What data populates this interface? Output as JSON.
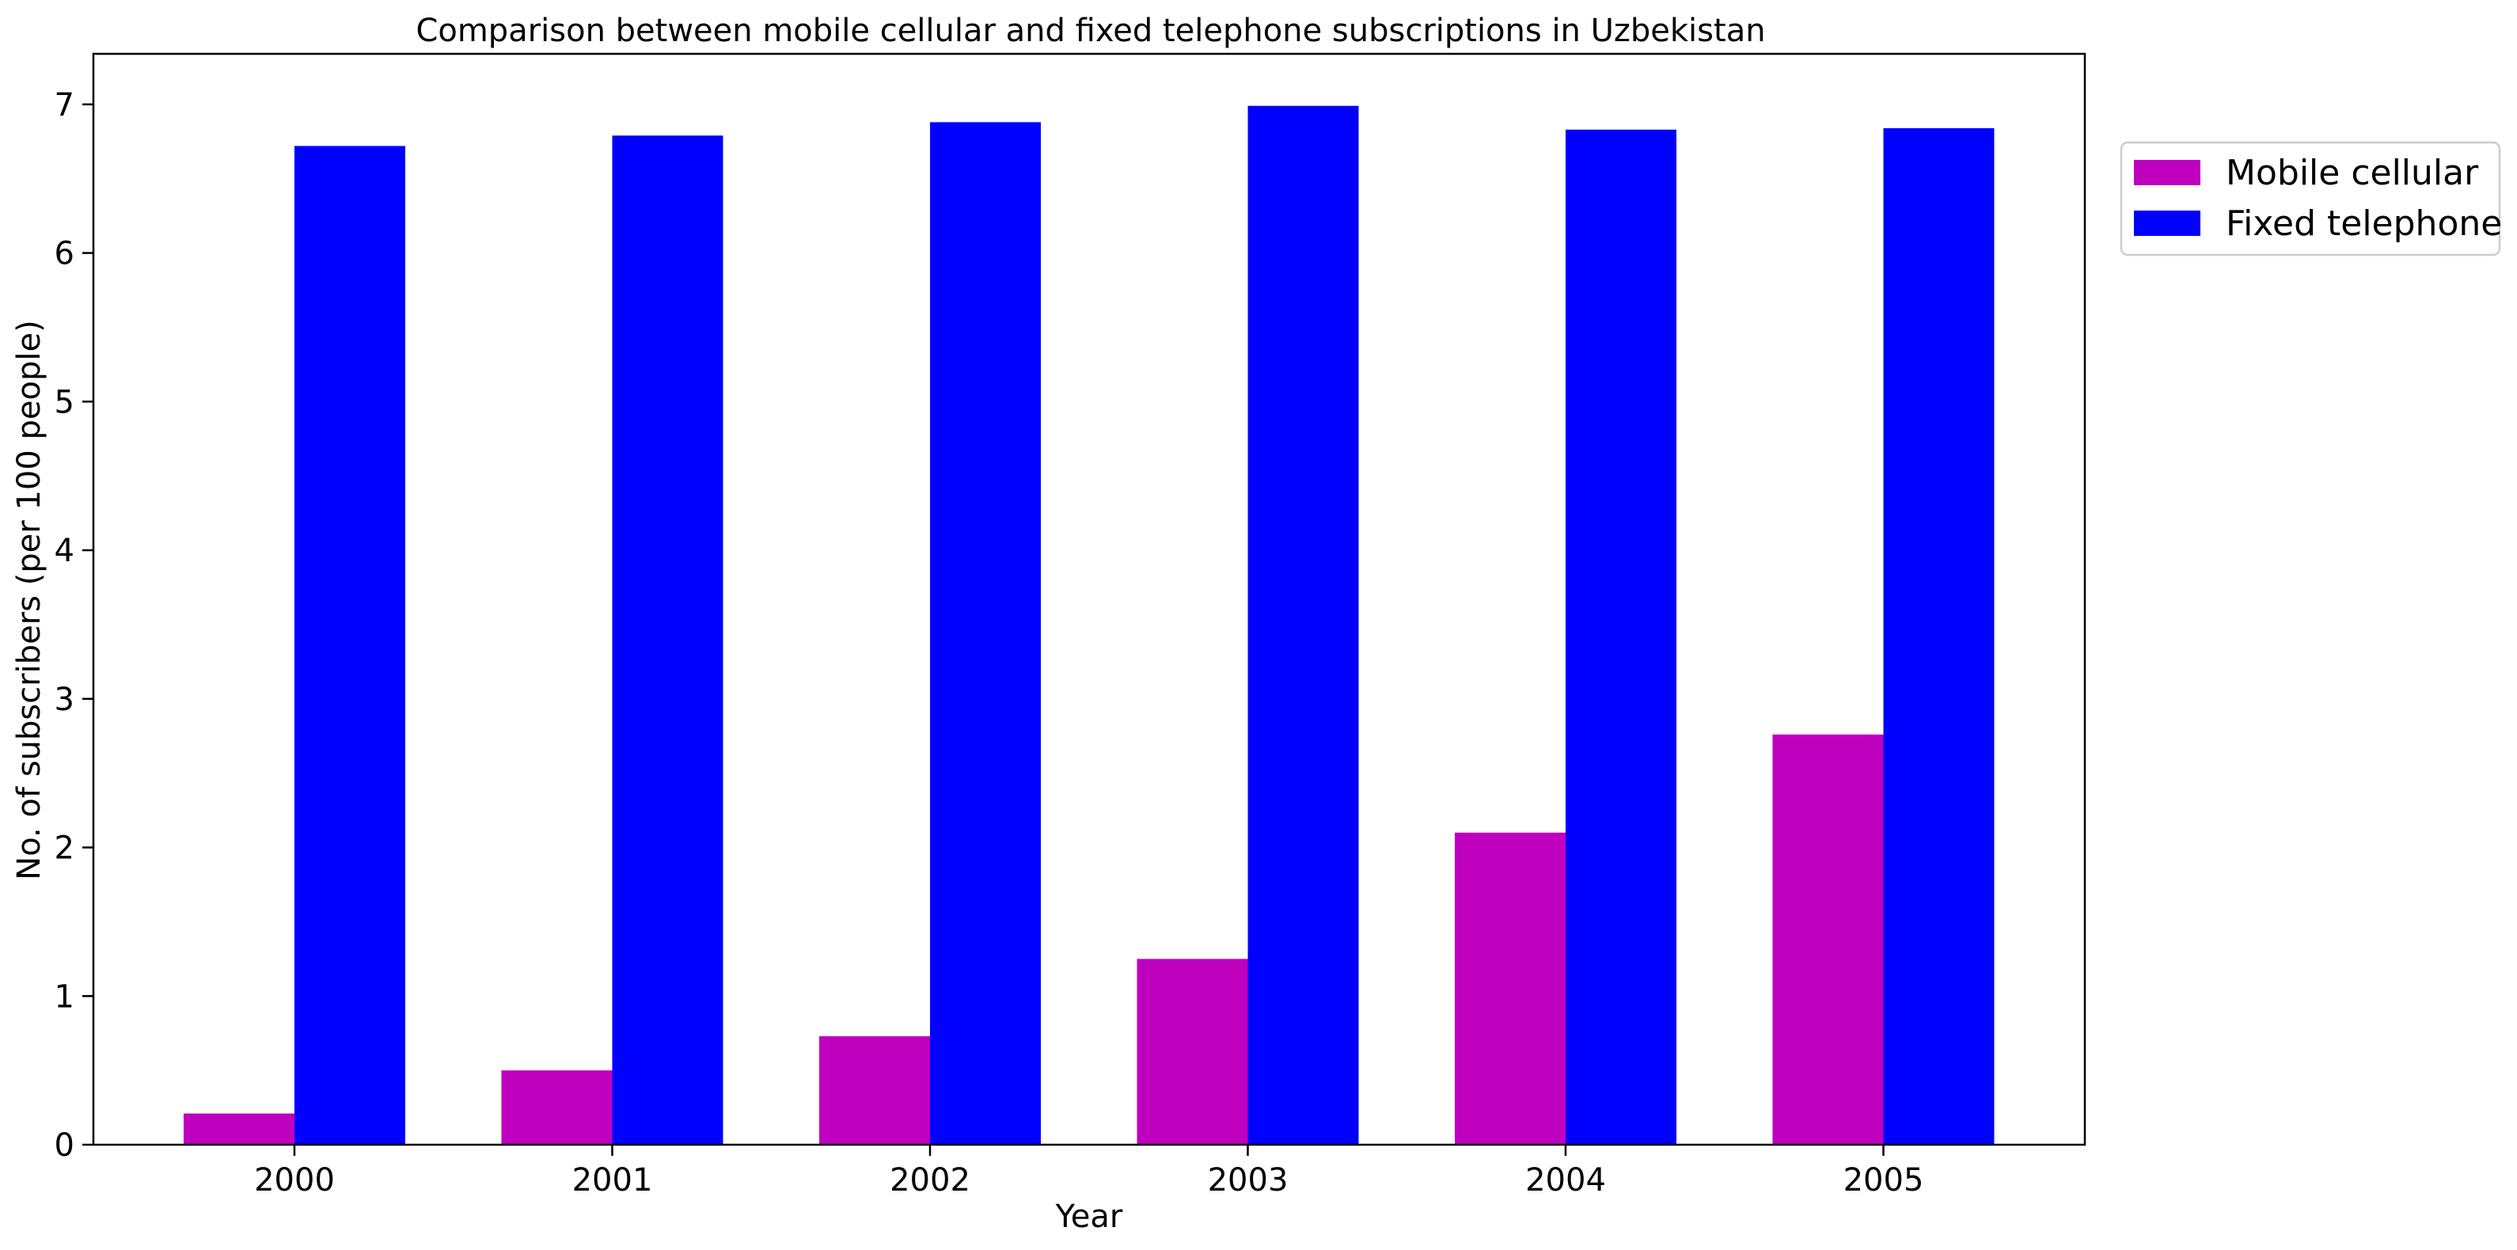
{
  "chart_data": {
    "type": "bar",
    "title": "Comparison between mobile cellular and fixed telephone subscriptions in Uzbekistan",
    "xlabel": "Year",
    "ylabel": "No. of subscribers (per 100 people)",
    "categories": [
      "2000",
      "2001",
      "2002",
      "2003",
      "2004",
      "2005"
    ],
    "series": [
      {
        "name": "Mobile cellular",
        "color": "#bf00bf",
        "values": [
          0.21,
          0.5,
          0.73,
          1.25,
          2.1,
          2.76
        ]
      },
      {
        "name": "Fixed telephone",
        "color": "#0000ff",
        "values": [
          6.72,
          6.79,
          6.88,
          6.99,
          6.83,
          6.84
        ]
      }
    ],
    "ylim": [
      0,
      7.34
    ],
    "yticks": [
      0,
      1,
      2,
      3,
      4,
      5,
      6,
      7
    ],
    "grid": false,
    "legend": "upper-right-outside"
  }
}
